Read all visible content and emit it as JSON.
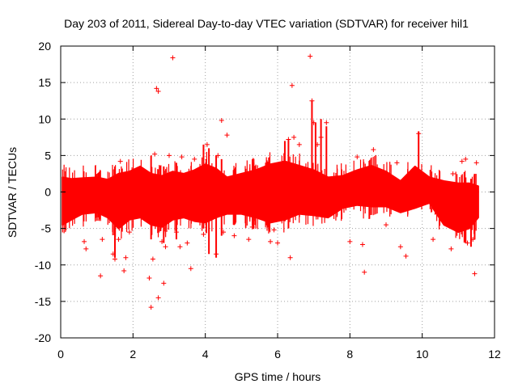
{
  "chart_data": {
    "type": "scatter",
    "title": "Day 203 of 2011, Sidereal Day-to-day VTEC variation (SDTVAR) for receiver hil1",
    "xlabel": "GPS time / hours",
    "ylabel": "SDTVAR / TECUs",
    "xlim": [
      0,
      12
    ],
    "ylim": [
      -20,
      20
    ],
    "xticks": [
      "0",
      "2",
      "4",
      "6",
      "8",
      "10",
      "12"
    ],
    "yticks": [
      "-20",
      "-15",
      "-10",
      "-5",
      "0",
      "5",
      "10",
      "15",
      "20"
    ],
    "grid": true,
    "marker": "+",
    "color": "#ff0000",
    "series": [
      {
        "name": "SDTVAR",
        "band_x": [
          0.05,
          0.3,
          0.6,
          1.0,
          1.3,
          1.6,
          1.9,
          2.2,
          2.5,
          2.8,
          3.1,
          3.4,
          3.7,
          4.0,
          4.3,
          4.6,
          5.0,
          5.4,
          5.8,
          6.2,
          6.6,
          7.0,
          7.4,
          7.8,
          8.2,
          8.6,
          9.0,
          9.4,
          9.8,
          10.2,
          10.6,
          11.0,
          11.3,
          11.55
        ],
        "band_upper": [
          2.0,
          1.8,
          1.9,
          2.0,
          1.7,
          2.5,
          2.8,
          3.5,
          2.5,
          2.2,
          2.8,
          2.5,
          3.0,
          3.8,
          3.2,
          2.0,
          2.5,
          3.0,
          3.8,
          4.2,
          3.6,
          3.0,
          2.0,
          2.2,
          3.0,
          3.6,
          2.8,
          1.5,
          3.5,
          2.0,
          1.5,
          1.2,
          1.2,
          0.8
        ],
        "band_lower": [
          -4.5,
          -3.8,
          -3.0,
          -2.8,
          -3.5,
          -5.0,
          -3.8,
          -3.5,
          -4.5,
          -4.8,
          -3.8,
          -3.5,
          -4.0,
          -4.2,
          -3.5,
          -3.0,
          -3.0,
          -3.5,
          -4.2,
          -3.8,
          -3.0,
          -3.2,
          -3.5,
          -2.2,
          -1.8,
          -2.0,
          -2.0,
          -2.8,
          -2.2,
          -1.5,
          -4.5,
          -5.5,
          -5.0,
          -3.5
        ],
        "outliers": [
          [
            0.65,
            -6.8
          ],
          [
            0.7,
            -7.8
          ],
          [
            1.1,
            -11.5
          ],
          [
            1.15,
            -6.5
          ],
          [
            1.45,
            -8.5
          ],
          [
            1.5,
            -9.2
          ],
          [
            1.6,
            -6.5
          ],
          [
            1.65,
            4.2
          ],
          [
            1.75,
            -10.8
          ],
          [
            1.8,
            -9.0
          ],
          [
            1.9,
            -5.5
          ],
          [
            2.45,
            -11.8
          ],
          [
            2.5,
            -15.8
          ],
          [
            2.55,
            -9.2
          ],
          [
            2.6,
            5.2
          ],
          [
            2.65,
            14.2
          ],
          [
            2.7,
            13.8
          ],
          [
            2.7,
            -14.5
          ],
          [
            2.8,
            -6.8
          ],
          [
            2.85,
            -12.5
          ],
          [
            2.9,
            -7.5
          ],
          [
            3.0,
            5.0
          ],
          [
            3.1,
            18.4
          ],
          [
            3.2,
            -5.5
          ],
          [
            3.3,
            -7.5
          ],
          [
            3.35,
            4.8
          ],
          [
            3.5,
            -7.0
          ],
          [
            3.6,
            -10.5
          ],
          [
            3.7,
            4.5
          ],
          [
            3.95,
            -5.8
          ],
          [
            4.05,
            6.5
          ],
          [
            4.3,
            -8.5
          ],
          [
            4.35,
            5.0
          ],
          [
            4.45,
            9.8
          ],
          [
            4.5,
            -5.5
          ],
          [
            4.6,
            7.8
          ],
          [
            4.8,
            -6.0
          ],
          [
            5.2,
            -6.5
          ],
          [
            5.3,
            -4.8
          ],
          [
            5.8,
            -6.8
          ],
          [
            5.9,
            -5.2
          ],
          [
            6.0,
            -7.0
          ],
          [
            6.3,
            7.2
          ],
          [
            6.35,
            -9.0
          ],
          [
            6.4,
            14.6
          ],
          [
            6.45,
            7.5
          ],
          [
            6.6,
            6.5
          ],
          [
            6.9,
            18.6
          ],
          [
            6.95,
            12.5
          ],
          [
            7.0,
            9.5
          ],
          [
            7.1,
            6.5
          ],
          [
            7.2,
            7.5
          ],
          [
            7.35,
            9.5
          ],
          [
            8.0,
            -6.8
          ],
          [
            8.2,
            4.8
          ],
          [
            8.35,
            -7.2
          ],
          [
            8.4,
            -11.0
          ],
          [
            8.65,
            5.8
          ],
          [
            9.0,
            -4.5
          ],
          [
            9.3,
            4.0
          ],
          [
            9.4,
            -7.5
          ],
          [
            9.55,
            -8.8
          ],
          [
            9.9,
            8.0
          ],
          [
            10.3,
            -6.5
          ],
          [
            10.8,
            -7.8
          ],
          [
            10.85,
            2.5
          ],
          [
            11.1,
            4.2
          ],
          [
            11.2,
            4.5
          ],
          [
            11.25,
            -7.0
          ],
          [
            11.4,
            -6.5
          ],
          [
            11.45,
            -11.2
          ],
          [
            11.5,
            4.0
          ]
        ],
        "spikes": [
          [
            1.5,
            -9.0,
            3.5
          ],
          [
            2.5,
            -6.5,
            5.0
          ],
          [
            2.85,
            -7.0,
            3.5
          ],
          [
            3.2,
            -6.5,
            4.0
          ],
          [
            3.95,
            -5.0,
            6.5
          ],
          [
            4.1,
            -8.5,
            6.0
          ],
          [
            4.3,
            -9.0,
            5.0
          ],
          [
            4.45,
            -6.0,
            4.5
          ],
          [
            6.2,
            -4.0,
            7.0
          ],
          [
            6.3,
            -5.0,
            7.2
          ],
          [
            6.95,
            -2.0,
            12.5
          ],
          [
            7.05,
            -1.0,
            9.5
          ],
          [
            7.2,
            -2.0,
            10.0
          ],
          [
            7.35,
            -2.0,
            9.0
          ],
          [
            9.9,
            -2.0,
            8.3
          ],
          [
            11.2,
            -7.0,
            2.0
          ],
          [
            11.35,
            -7.5,
            1.8
          ],
          [
            11.45,
            -6.5,
            2.5
          ]
        ]
      }
    ]
  }
}
